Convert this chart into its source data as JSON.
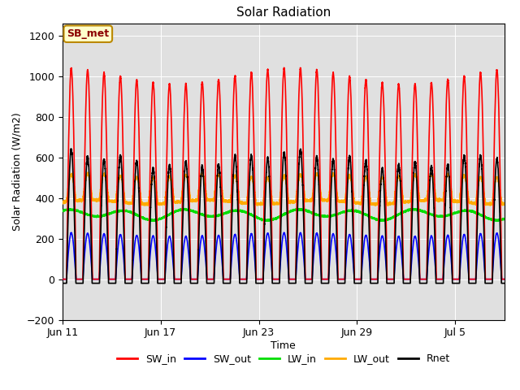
{
  "title": "Solar Radiation",
  "xlabel": "Time",
  "ylabel": "Solar Radiation (W/m2)",
  "ylim": [
    -200,
    1260
  ],
  "yticks": [
    -200,
    0,
    200,
    400,
    600,
    800,
    1000,
    1200
  ],
  "xtick_labels": [
    "Jun 11",
    "Jun 17",
    "Jun 23",
    "Jun 29",
    "Jul 5"
  ],
  "xtick_positions": [
    0,
    6,
    12,
    18,
    24
  ],
  "annotation_text": "SB_met",
  "annotation_bg": "#ffffcc",
  "annotation_border": "#bb8800",
  "annotation_text_color": "#8b0000",
  "bg_color": "#e0e0e0",
  "figure_bg": "#ffffff",
  "lines": {
    "SW_in": {
      "color": "#ff0000",
      "lw": 1.2
    },
    "SW_out": {
      "color": "#0000ff",
      "lw": 1.2
    },
    "LW_in": {
      "color": "#00dd00",
      "lw": 1.2
    },
    "LW_out": {
      "color": "#ffaa00",
      "lw": 1.2
    },
    "Rnet": {
      "color": "#000000",
      "lw": 1.2
    }
  },
  "total_days": 27,
  "points_per_day": 288
}
